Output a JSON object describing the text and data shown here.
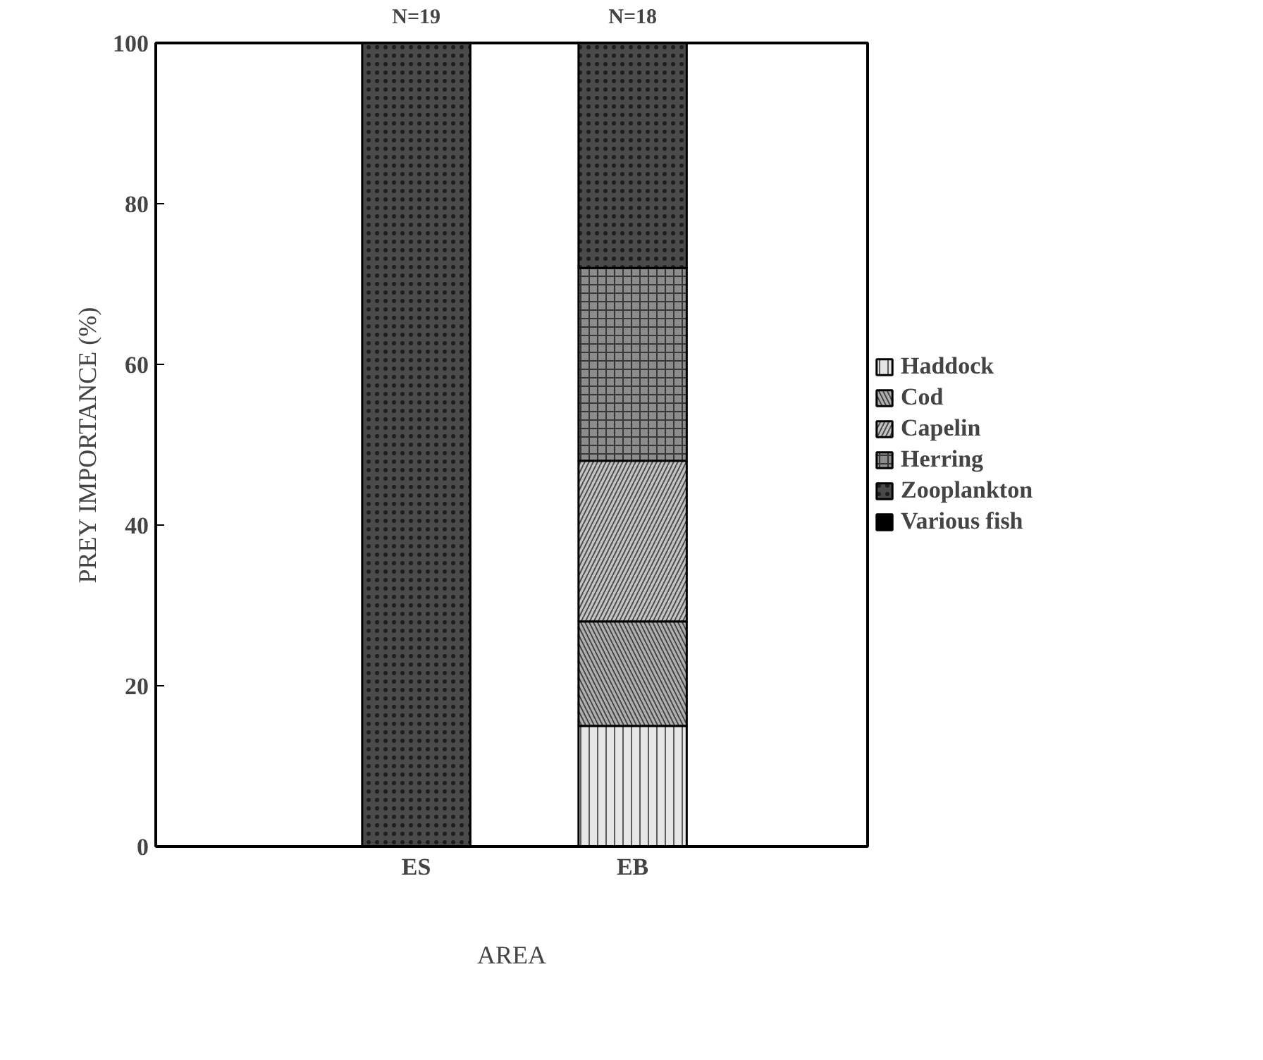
{
  "chart_data": {
    "type": "bar",
    "stacked": true,
    "xlabel": "AREA",
    "ylabel": "PREY IMPORTANCE (%)",
    "categories": [
      "ES",
      "EB"
    ],
    "series": [
      {
        "name": "Haddock",
        "color": "#e6e6e6",
        "values": [
          0,
          15
        ]
      },
      {
        "name": "Cod",
        "color": "#b0b0b0",
        "values": [
          0,
          13
        ]
      },
      {
        "name": "Capelin",
        "color": "#c4c4c4",
        "values": [
          0,
          20
        ]
      },
      {
        "name": "Herring",
        "color": "#8c8c8c",
        "values": [
          0,
          24
        ]
      },
      {
        "name": "Zooplankton",
        "color": "#4a4a4a",
        "values": [
          100,
          28
        ]
      },
      {
        "name": "Various fish",
        "color": "#000000",
        "values": [
          0,
          0
        ]
      }
    ],
    "ylim": [
      0,
      100
    ],
    "yticks": [
      0,
      20,
      40,
      60,
      80,
      100
    ],
    "grid": false,
    "legend": "right",
    "annotations": [
      "N=19",
      "N=18"
    ]
  }
}
